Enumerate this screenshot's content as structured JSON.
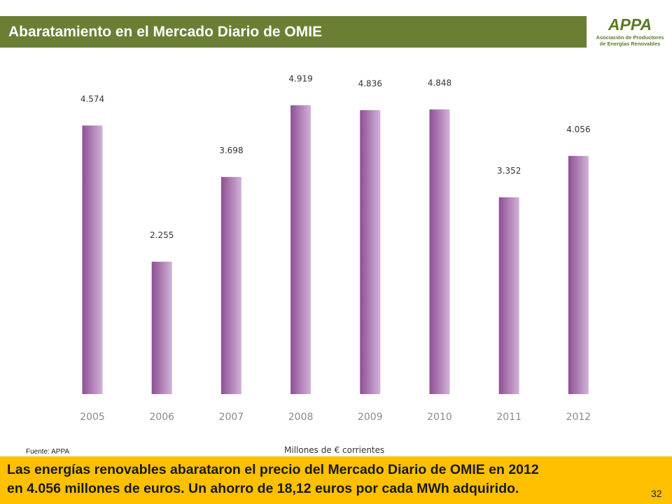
{
  "title": "Abaratamiento en el Mercado Diario de OMIE",
  "logo": {
    "text": "APPA",
    "line1": "Asociación de Productores",
    "line2": "de Energías Renovables",
    "color": "#5b7a2a"
  },
  "source": "Fuente: APPA",
  "footer": {
    "line1": "Las energías renovables abarataron el precio del Mercado Diario de OMIE en 2012",
    "line2": "en 4.056 millones de euros. Un ahorro de 18,12 euros por cada MWh adquirido."
  },
  "page_number": "32",
  "colors": {
    "title_bg": "#6a7f34",
    "bar_dark": "#8e4f94",
    "bar_light": "#d2b3d8",
    "footer_bg": "#ffc000"
  },
  "chart_data": {
    "type": "bar",
    "categories": [
      "2005",
      "2006",
      "2007",
      "2008",
      "2009",
      "2010",
      "2011",
      "2012"
    ],
    "values": [
      4574,
      2255,
      3698,
      4919,
      4836,
      4848,
      3352,
      4056
    ],
    "value_labels": [
      "4.574",
      "2.255",
      "3.698",
      "4.919",
      "4.836",
      "4.848",
      "3.352",
      "4.056"
    ],
    "xlabel": "Millones de € corrientes",
    "ylabel": "",
    "ylim": [
      0,
      5000
    ],
    "grid": false,
    "legend": "none"
  }
}
